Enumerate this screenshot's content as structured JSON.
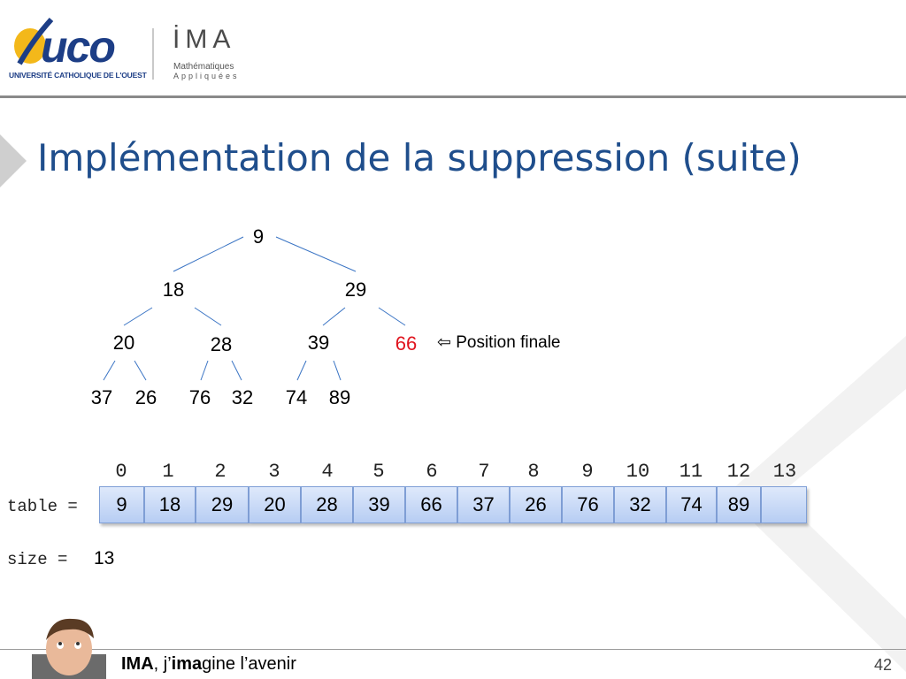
{
  "header": {
    "uco_logo_text": "uco",
    "uco_subtitle": "UNIVERSITÉ CATHOLIQUE DE L'OUEST",
    "ima_logo_text": "İMA",
    "ima_sub1": "Mathématiques",
    "ima_sub2": "Appliquées"
  },
  "slide": {
    "title": "Implémentation de la suppression (suite)",
    "annotation": "⇦ Position finale",
    "tree_nodes": [
      "9",
      "18",
      "29",
      "20",
      "28",
      "39",
      "66",
      "37",
      "26",
      "76",
      "32",
      "74",
      "89"
    ],
    "highlight_node_index": 6,
    "highlight_color": "#e0141e",
    "table_label": "table =",
    "indices": [
      "0",
      "1",
      "2",
      "3",
      "4",
      "5",
      "6",
      "7",
      "8",
      "9",
      "10",
      "11",
      "12",
      "13"
    ],
    "table_values": [
      "9",
      "18",
      "29",
      "20",
      "28",
      "39",
      "66",
      "37",
      "26",
      "76",
      "32",
      "74",
      "89",
      ""
    ],
    "size_label": "size =",
    "size_value": "13"
  },
  "footer": {
    "brand": "IMA",
    "sep": ", j’",
    "bold2": "ima",
    "rest": "gine l’avenir",
    "page_number": "42"
  },
  "colors": {
    "title": "#1f4e8c",
    "edge": "#3a74c4",
    "cell_border": "#7f9fd6"
  }
}
